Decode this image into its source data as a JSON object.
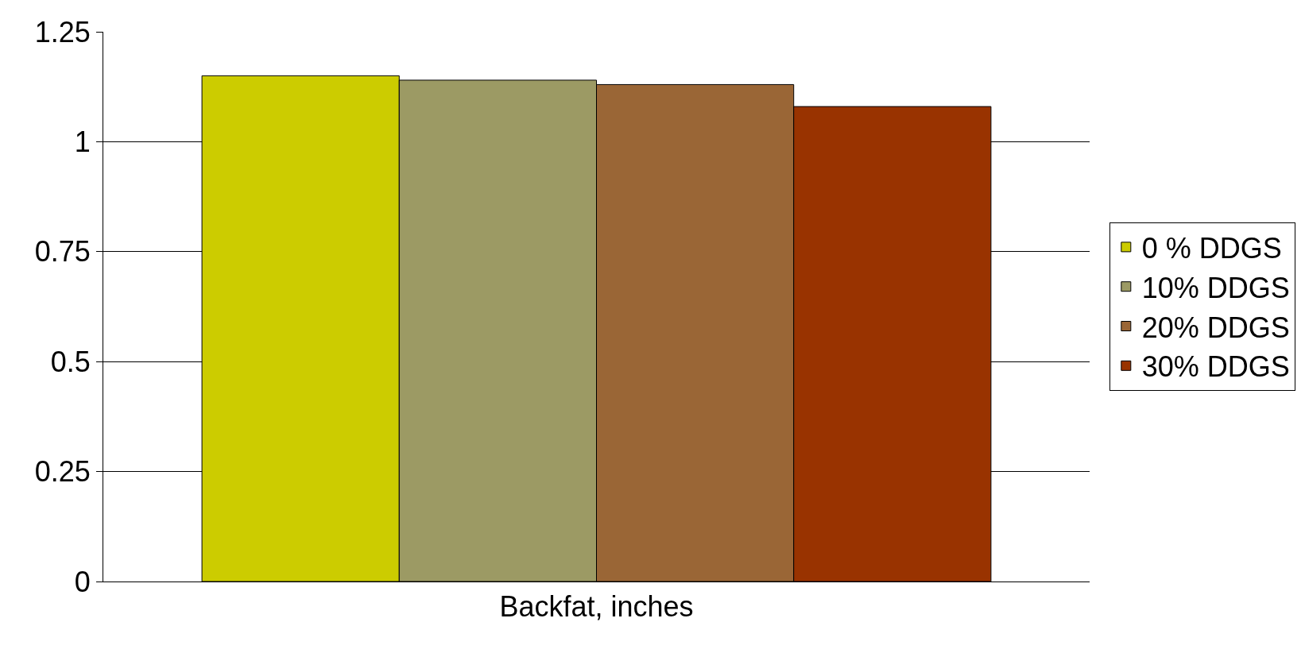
{
  "chart_data": {
    "type": "bar",
    "categories": [
      "Backfat, inches"
    ],
    "series": [
      {
        "name": "0 % DDGS",
        "color": "#cccc00",
        "values": [
          1.15
        ]
      },
      {
        "name": "10% DDGS",
        "color": "#9c9a64",
        "values": [
          1.14
        ]
      },
      {
        "name": "20% DDGS",
        "color": "#9a6636",
        "values": [
          1.13
        ]
      },
      {
        "name": "30% DDGS",
        "color": "#993300",
        "values": [
          1.08
        ]
      }
    ],
    "ylim": [
      0,
      1.25
    ],
    "yticks": [
      0,
      0.25,
      0.5,
      0.75,
      1,
      1.25
    ],
    "grid": "y",
    "legend": "right"
  }
}
